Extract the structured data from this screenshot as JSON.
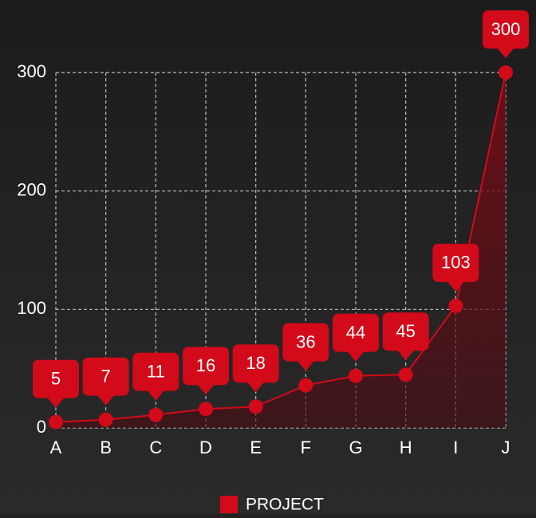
{
  "chart_data": {
    "type": "area",
    "categories": [
      "A",
      "B",
      "C",
      "D",
      "E",
      "F",
      "G",
      "H",
      "I",
      "J"
    ],
    "series": [
      {
        "name": "PROJECT",
        "color": "#d20a1a",
        "values": [
          5,
          7,
          11,
          16,
          18,
          36,
          44,
          45,
          103,
          300
        ]
      }
    ],
    "ylim": [
      0,
      300
    ],
    "yticks": [
      0,
      100,
      200,
      300
    ],
    "grid": true,
    "legend": "bottom"
  }
}
